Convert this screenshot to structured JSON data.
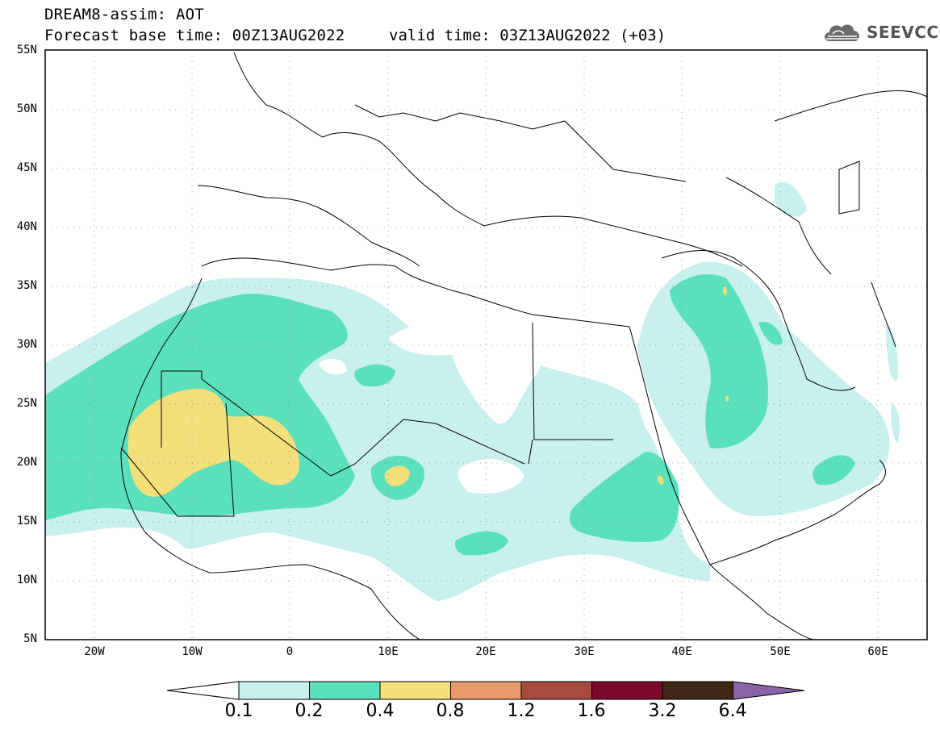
{
  "header": {
    "title": "DREAM8-assim: AOT",
    "base_time": "Forecast base time: 00Z13AUG2022",
    "valid_time": "valid time: 03Z13AUG2022 (+03)"
  },
  "logo": {
    "text": "SEEVCCC",
    "icon": "cloud-icon"
  },
  "axes": {
    "lat_labels": [
      "55N",
      "50N",
      "45N",
      "40N",
      "35N",
      "30N",
      "25N",
      "20N",
      "15N",
      "10N",
      "5N"
    ],
    "lon_labels": [
      "20W",
      "10W",
      "0",
      "10E",
      "20E",
      "30E",
      "40E",
      "50E",
      "60E"
    ],
    "lat_range": [
      5,
      55
    ],
    "lon_range": [
      -25,
      65
    ],
    "grid": true
  },
  "colorbar": {
    "labels": [
      "0.1",
      "0.2",
      "0.4",
      "0.8",
      "1.2",
      "1.6",
      "3.2",
      "6.4"
    ],
    "colors": [
      "#ffffff",
      "#c8f0ec",
      "#5be0bc",
      "#f4e07a",
      "#e89a6c",
      "#a84a3c",
      "#7a0a2c",
      "#3c2814",
      "#8a64a8"
    ]
  }
}
